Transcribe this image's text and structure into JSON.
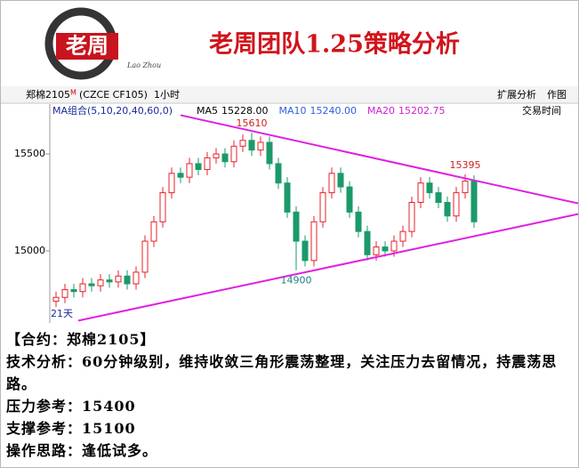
{
  "header": {
    "logo_text": "老周",
    "logo_script": "Lao Zhou",
    "title": "老周团队1.25策略分析"
  },
  "toolbar": {
    "symbol": "郑棉2105",
    "symbol_suffix": "M",
    "code": "(CZCE CF105)",
    "period": "1小时",
    "buttons": [
      "扩展分析",
      "作图"
    ]
  },
  "chart_data": {
    "type": "candlestick",
    "indicator": "MA组合(5,10,20,40,60,0)",
    "ma": [
      {
        "name": "MA5",
        "value": "15228.00",
        "color": "#000000"
      },
      {
        "name": "MA10",
        "value": "15240.00",
        "color": "#3060e0"
      },
      {
        "name": "MA20",
        "value": "15202.75",
        "color": "#d020d0"
      }
    ],
    "time_label": "交易时间",
    "span_label": "21天",
    "up_color": "#e8202a",
    "down_color": "#1a9a6a",
    "open": [
      14740,
      14760,
      14800,
      14790,
      14830,
      14820,
      14850,
      14840,
      14870,
      14830,
      14890,
      15050,
      15150,
      15300,
      15400,
      15380,
      15450,
      15420,
      15480,
      15500,
      15460,
      15540,
      15570,
      15520,
      15560,
      15450,
      15350,
      15200,
      15050,
      14950,
      15150,
      15300,
      15400,
      15330,
      15200,
      15100,
      14980,
      15020,
      15000,
      15050,
      15100,
      15250,
      15350,
      15300,
      15250,
      15180,
      15300,
      15360
    ],
    "high": [
      14790,
      14830,
      14830,
      14860,
      14860,
      14880,
      14880,
      14900,
      14900,
      14920,
      15080,
      15180,
      15330,
      15430,
      15430,
      15480,
      15480,
      15510,
      15530,
      15530,
      15570,
      15600,
      15610,
      15590,
      15590,
      15480,
      15380,
      15230,
      15080,
      15180,
      15330,
      15430,
      15430,
      15360,
      15230,
      15130,
      15050,
      15050,
      15080,
      15130,
      15280,
      15380,
      15380,
      15330,
      15280,
      15330,
      15395,
      15390
    ],
    "low": [
      14710,
      14730,
      14760,
      14760,
      14790,
      14790,
      14810,
      14810,
      14800,
      14800,
      14860,
      15020,
      15120,
      15270,
      15350,
      15350,
      15390,
      15390,
      15450,
      15430,
      15430,
      15510,
      15490,
      15490,
      15420,
      15320,
      15170,
      14900,
      14920,
      14920,
      15120,
      15270,
      15300,
      15170,
      15070,
      14950,
      14950,
      14970,
      14970,
      15020,
      15070,
      15220,
      15270,
      15220,
      15150,
      15150,
      15270,
      15120
    ],
    "close": [
      14760,
      14800,
      14790,
      14830,
      14820,
      14850,
      14840,
      14870,
      14830,
      14890,
      15050,
      15150,
      15300,
      15400,
      15380,
      15450,
      15420,
      15480,
      15500,
      15460,
      15540,
      15570,
      15520,
      15560,
      15450,
      15350,
      15200,
      15050,
      14950,
      15150,
      15300,
      15400,
      15330,
      15200,
      15100,
      14980,
      15020,
      15000,
      15050,
      15100,
      15250,
      15350,
      15300,
      15250,
      15180,
      15300,
      15360,
      15150
    ],
    "trend_lines": [
      {
        "from": [
          14,
          15700
        ],
        "to": [
          59,
          15245
        ],
        "color": "#e020e0"
      },
      {
        "from": [
          2.5,
          14640
        ],
        "to": [
          59,
          15190
        ],
        "color": "#e020e0"
      }
    ],
    "ylim": [
      14628,
      15748
    ],
    "yticks": [
      15000,
      15500
    ]
  },
  "document": {
    "lines": [
      "【合约：郑棉2105】",
      "技术分析：60分钟级别，维持收敛三角形震荡整理，关注压力去留情况，持震荡思路。",
      "压力参考：15400",
      "支撑参考：15100",
      "操作思路：逢低试多。"
    ]
  }
}
